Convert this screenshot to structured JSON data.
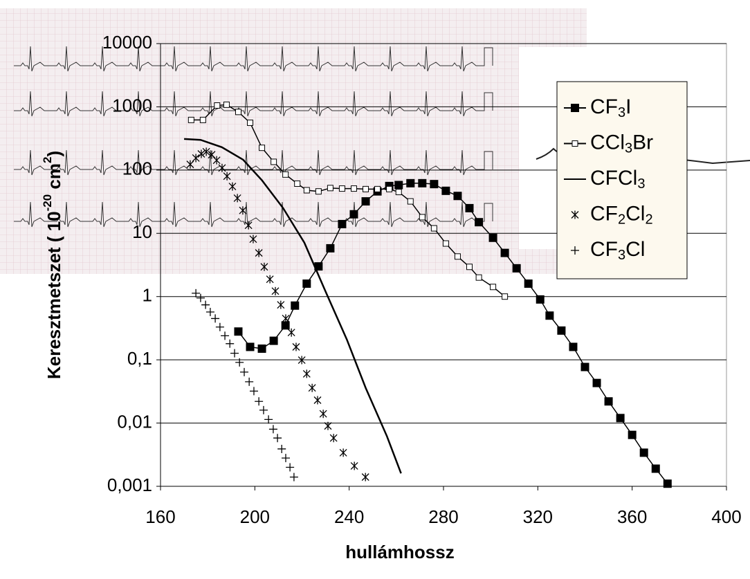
{
  "chart_data": {
    "type": "line",
    "ylabel": [
      "Keresztmetszet ( 10",
      "-20",
      " cm",
      "2",
      ")"
    ],
    "xlabel": "hullámhossz",
    "xlim": [
      160,
      400
    ],
    "xticks": [
      160,
      200,
      240,
      280,
      320,
      360,
      400
    ],
    "ylim": [
      0.001,
      10000
    ],
    "log_y": true,
    "yticks": [
      {
        "value": 0.001,
        "label": "0,001"
      },
      {
        "value": 0.01,
        "label": "0,01"
      },
      {
        "value": 0.1,
        "label": "0,1"
      },
      1,
      10,
      100,
      1000,
      10000
    ],
    "grid": true,
    "legend": "upper right",
    "series": [
      {
        "name": "CF3I",
        "color": "#000000",
        "marker": "filled-square",
        "line": true,
        "x": [
          193,
          198,
          203,
          208,
          213,
          217,
          222,
          227,
          232,
          237,
          242,
          247,
          252,
          257,
          261,
          266,
          271,
          276,
          281,
          286,
          291,
          295,
          301,
          306,
          311,
          316,
          321,
          325,
          330,
          335,
          340,
          345,
          350,
          355,
          360,
          365,
          370,
          375
        ],
        "values": [
          0.28,
          0.16,
          0.15,
          0.2,
          0.35,
          0.72,
          1.6,
          3,
          5.8,
          14,
          20,
          32,
          46,
          56,
          58,
          62,
          62,
          60,
          47,
          39,
          25,
          15,
          8.5,
          4.9,
          2.8,
          1.6,
          0.9,
          0.5,
          0.29,
          0.16,
          0.077,
          0.043,
          0.022,
          0.012,
          0.0065,
          0.0034,
          0.0019,
          0.0011
        ]
      },
      {
        "name": "CCl3Br",
        "color": "#000000",
        "marker": "open-square",
        "line": true,
        "x": [
          173,
          178,
          184,
          188,
          193,
          198,
          203,
          208,
          213,
          218,
          222,
          227,
          232,
          237,
          242,
          247,
          252,
          257,
          261,
          266,
          271,
          276,
          281,
          286,
          291,
          295,
          301,
          306
        ],
        "values": [
          620,
          620,
          1050,
          1080,
          830,
          560,
          225,
          135,
          85,
          61,
          48,
          46,
          52,
          51,
          51,
          50,
          50,
          50,
          45,
          32,
          18,
          12,
          6.9,
          4.3,
          2.95,
          2,
          1.42,
          1
        ]
      },
      {
        "name": "CFCl3",
        "color": "#000000",
        "marker": "none",
        "line": true,
        "x": [
          170,
          177,
          186,
          195,
          203,
          212,
          221,
          230,
          239,
          247,
          256,
          262
        ],
        "values": [
          310,
          300,
          230,
          146,
          69,
          25,
          7.1,
          1.2,
          0.21,
          0.036,
          0.0062,
          0.0016
        ]
      },
      {
        "name": "CF2Cl2",
        "color": "#000000",
        "marker": "star",
        "line": false,
        "x": [
          172.6,
          175,
          177.3,
          179.4,
          181.7,
          183.8,
          186.1,
          188.2,
          190.5,
          192.6,
          194.9,
          197.3,
          199.3,
          201.7,
          204,
          206.4,
          208.7,
          211,
          213.1,
          215.5,
          217.5,
          219.9,
          222,
          224.3,
          226.6,
          229,
          231,
          233.4,
          237.5,
          242.2,
          246.9
        ],
        "values": [
          123,
          155,
          180,
          195,
          175,
          143,
          108,
          80,
          55,
          36,
          23,
          13.4,
          8.1,
          4.9,
          2.95,
          1.88,
          1.22,
          0.74,
          0.45,
          0.27,
          0.16,
          0.099,
          0.06,
          0.036,
          0.023,
          0.014,
          0.009,
          0.0058,
          0.0034,
          0.0021,
          0.0014
        ]
      },
      {
        "name": "CF3Cl",
        "color": "#000000",
        "marker": "plus",
        "line": false,
        "x": [
          175,
          177,
          179.1,
          181.1,
          183.2,
          185.2,
          187.3,
          189.4,
          191.4,
          193.5,
          195.5,
          197.6,
          199.6,
          201.7,
          203.7,
          205.8,
          207.8,
          209.6,
          211.4,
          213.1,
          214.9,
          216.6
        ],
        "values": [
          1.13,
          0.95,
          0.74,
          0.57,
          0.45,
          0.33,
          0.24,
          0.18,
          0.127,
          0.091,
          0.064,
          0.045,
          0.032,
          0.022,
          0.016,
          0.0114,
          0.008,
          0.0058,
          0.0039,
          0.0028,
          0.002,
          0.0014
        ]
      }
    ]
  }
}
